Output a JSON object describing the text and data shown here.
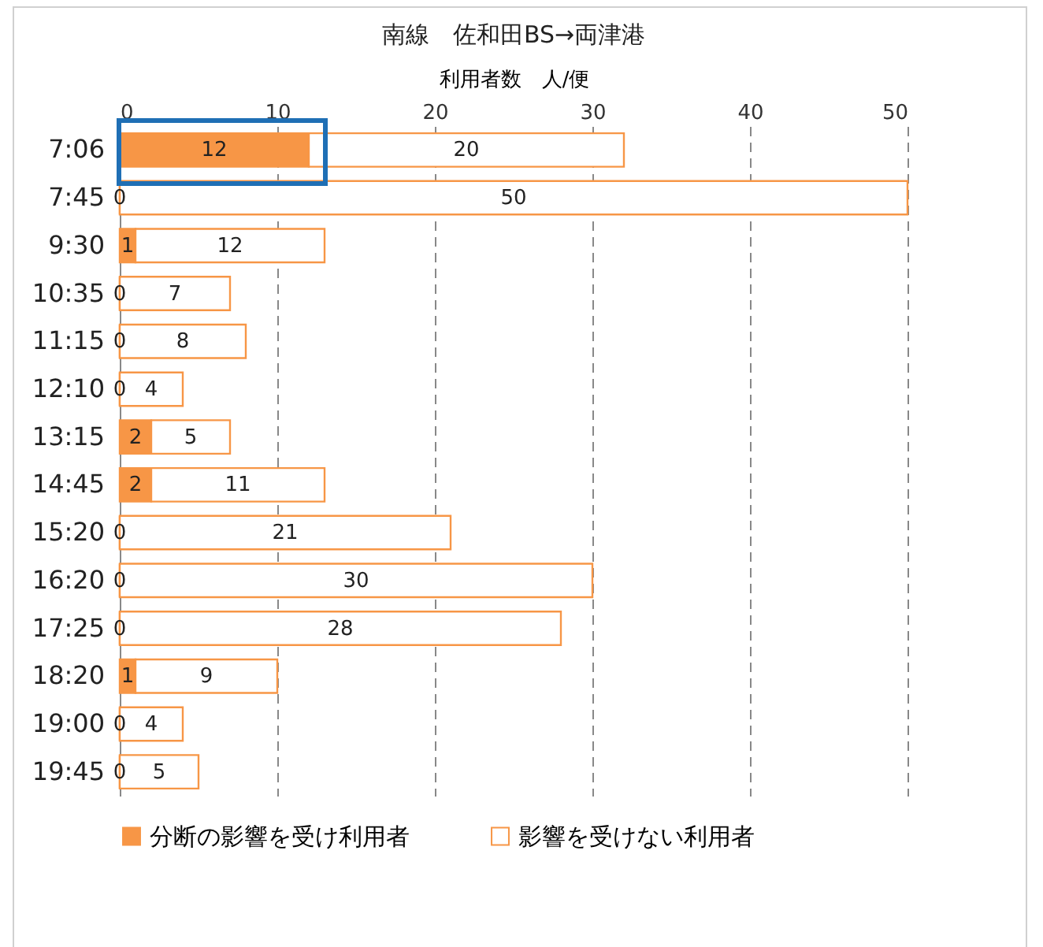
{
  "chart_data": {
    "type": "bar",
    "orientation": "horizontal",
    "stacked": true,
    "title": "南線　佐和田BS→両津港",
    "xlabel": "利用者数　人/便",
    "categories": [
      "7:06",
      "7:45",
      "9:30",
      "10:35",
      "11:15",
      "12:10",
      "13:15",
      "14:45",
      "15:20",
      "16:20",
      "17:25",
      "18:20",
      "19:00",
      "19:45"
    ],
    "series": [
      {
        "name": "分断の影響を受け利用者",
        "color": "#f79646",
        "values": [
          12,
          0,
          1,
          0,
          0,
          0,
          2,
          2,
          0,
          0,
          0,
          1,
          0,
          0
        ]
      },
      {
        "name": "影響を受けない利用者",
        "color": "#ffffff",
        "values": [
          20,
          50,
          12,
          7,
          8,
          4,
          5,
          11,
          21,
          30,
          28,
          9,
          4,
          5
        ]
      }
    ],
    "xlim": [
      0,
      50
    ],
    "xticks": [
      0,
      10,
      20,
      30,
      40,
      50
    ],
    "grid": "x",
    "legend": "bottom",
    "data_labels": true
  }
}
